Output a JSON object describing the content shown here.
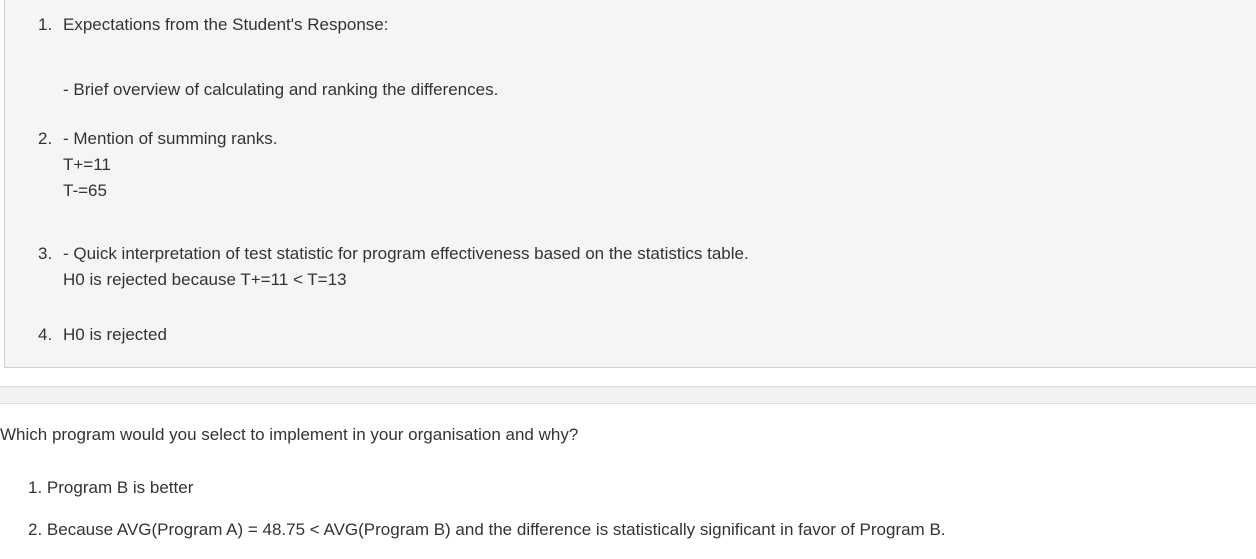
{
  "answer": {
    "item1_title": "Expectations from the Student's Response:",
    "item1_sub": "- Brief overview of calculating and ranking the differences.",
    "item2_title": "- Mention of summing ranks.",
    "item2_line1": "T+=11",
    "item2_line2": "T-=65",
    "item3_title": "- Quick interpretation of test statistic for program effectiveness based on the statistics table.",
    "item3_line1": "H0 is rejected because T+=11 < T=13",
    "item4_title": "H0 is rejected"
  },
  "question": {
    "text": "Which program would you select to implement in your organisation and why?",
    "answers": [
      "Program B is better",
      "Because AVG(Program A) = 48.75 < AVG(Program B) and the difference is statistically significant in favor of Program B."
    ]
  }
}
